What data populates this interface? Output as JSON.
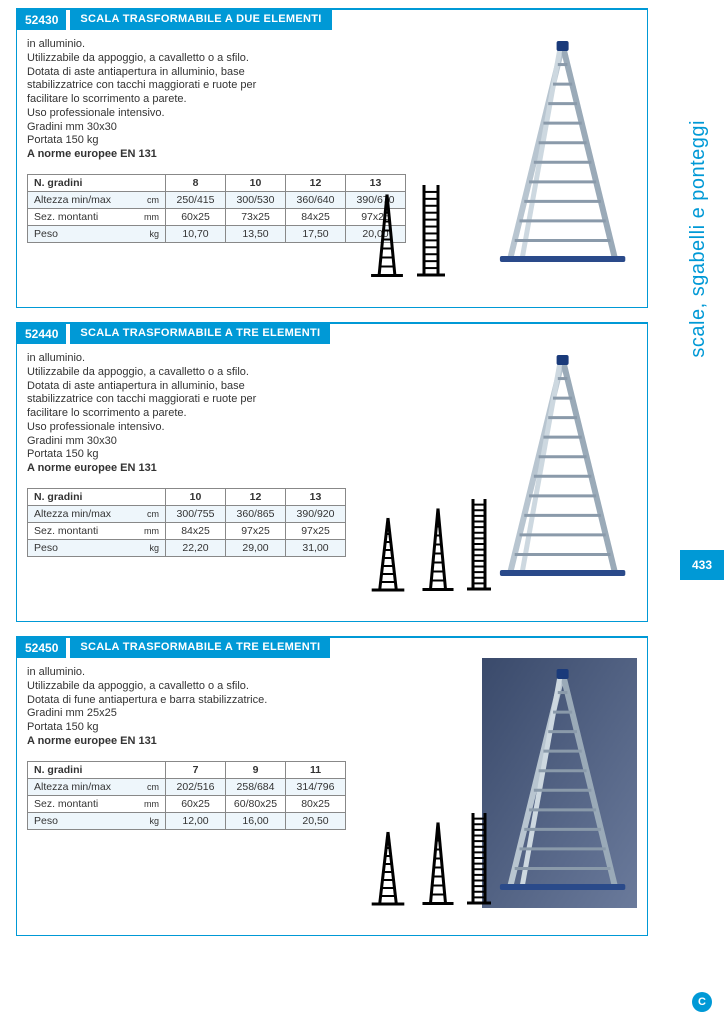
{
  "sidebar": {
    "category": "scale, sgabelli e ponteggi",
    "page_number": "433"
  },
  "colors": {
    "accent": "#0099d6",
    "border": "#888888",
    "row_tint": "#eef6fb",
    "text": "#333333"
  },
  "sections": [
    {
      "code": "52430",
      "title": "SCALA TRASFORMABILE A DUE ELEMENTI",
      "description": [
        "in alluminio.",
        "Utilizzabile da appoggio, a cavalletto o a sfilo.",
        "Dotata di aste antiapertura in alluminio, base",
        "stabilizzatrice con tacchi maggiorati e ruote per",
        "facilitare lo scorrimento a parete.",
        "Uso professionale intensivo.",
        "Gradini mm 30x30",
        "Portata 150 kg"
      ],
      "norm": "A norme europee EN 131",
      "table": {
        "header_label": "N. gradini",
        "columns": [
          "8",
          "10",
          "12",
          "13"
        ],
        "rows": [
          {
            "label": "Altezza min/max",
            "unit": "cm",
            "values": [
              "250/415",
              "300/530",
              "360/640",
              "390/670"
            ]
          },
          {
            "label": "Sez. montanti",
            "unit": "mm",
            "values": [
              "60x25",
              "73x25",
              "84x25",
              "97x25"
            ]
          },
          {
            "label": "Peso",
            "unit": "kg",
            "values": [
              "10,70",
              "13,50",
              "17,50",
              "20,00"
            ]
          }
        ]
      },
      "photo_bg": false
    },
    {
      "code": "52440",
      "title": "SCALA TRASFORMABILE A TRE ELEMENTI",
      "description": [
        "in alluminio.",
        "Utilizzabile da appoggio, a cavalletto o a sfilo.",
        "Dotata di aste antiapertura in alluminio, base",
        "stabilizzatrice con tacchi maggiorati e ruote  per",
        "facilitare lo scorrimento a parete.",
        "Uso professionale intensivo.",
        "Gradini mm 30x30",
        "Portata 150 kg"
      ],
      "norm": "A norme europee EN 131",
      "table": {
        "header_label": "N. gradini",
        "columns": [
          "10",
          "12",
          "13"
        ],
        "rows": [
          {
            "label": "Altezza min/max",
            "unit": "cm",
            "values": [
              "300/755",
              "360/865",
              "390/920"
            ]
          },
          {
            "label": "Sez. montanti",
            "unit": "mm",
            "values": [
              "84x25",
              "97x25",
              "97x25"
            ]
          },
          {
            "label": "Peso",
            "unit": "kg",
            "values": [
              "22,20",
              "29,00",
              "31,00"
            ]
          }
        ]
      },
      "photo_bg": false
    },
    {
      "code": "52450",
      "title": "SCALA TRASFORMABILE A TRE ELEMENTI",
      "description": [
        "in alluminio.",
        "Utilizzabile da appoggio, a cavalletto o a sfilo.",
        "Dotata di fune antiapertura e barra stabilizzatrice.",
        "Gradini mm 25x25",
        "Portata 150 kg"
      ],
      "norm": "A norme europee EN 131",
      "table": {
        "header_label": "N. gradini",
        "columns": [
          "7",
          "9",
          "11"
        ],
        "rows": [
          {
            "label": "Altezza min/max",
            "unit": "cm",
            "values": [
              "202/516",
              "258/684",
              "314/796"
            ]
          },
          {
            "label": "Sez. montanti",
            "unit": "mm",
            "values": [
              "60x25",
              "60/80x25",
              "80x25"
            ]
          },
          {
            "label": "Peso",
            "unit": "kg",
            "values": [
              "12,00",
              "16,00",
              "20,50"
            ]
          }
        ]
      },
      "photo_bg": true
    }
  ]
}
